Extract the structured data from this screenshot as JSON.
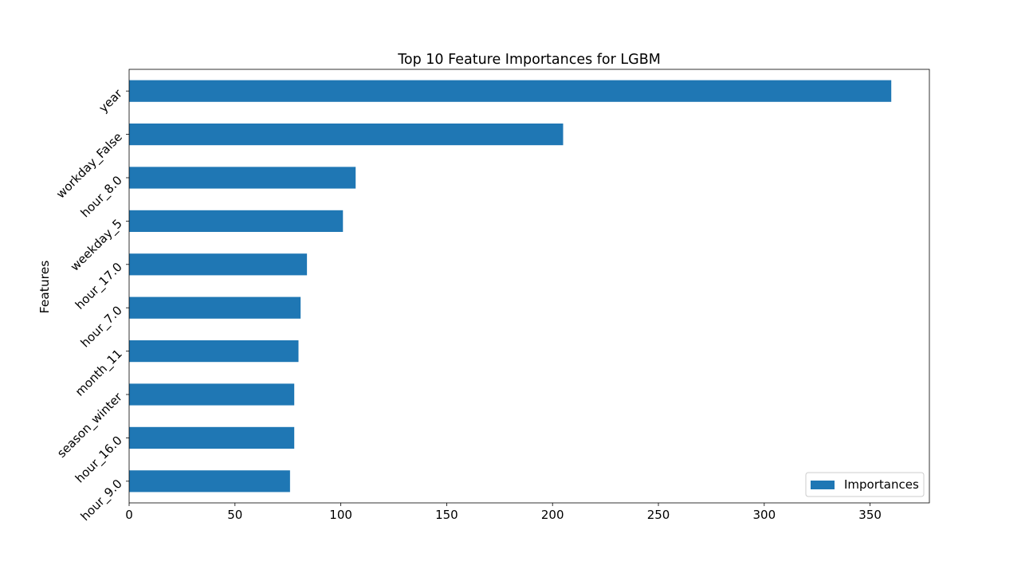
{
  "chart_data": {
    "type": "bar",
    "orientation": "horizontal",
    "title": "Top 10 Feature Importances for LGBM",
    "xlabel": "",
    "ylabel": "Features",
    "categories": [
      "year",
      "workday_False",
      "hour_8.0",
      "weekday_5",
      "hour_17.0",
      "hour_7.0",
      "month_11",
      "season_winter",
      "hour_16.0",
      "hour_9.0"
    ],
    "series": [
      {
        "name": "Importances",
        "values": [
          360,
          205,
          107,
          101,
          84,
          81,
          80,
          78,
          78,
          76
        ],
        "color": "#1f77b4"
      }
    ],
    "xlim": [
      0,
      378
    ],
    "xticks": [
      0,
      50,
      100,
      150,
      200,
      250,
      300,
      350
    ],
    "grid": false,
    "legend_position": "lower-right"
  }
}
